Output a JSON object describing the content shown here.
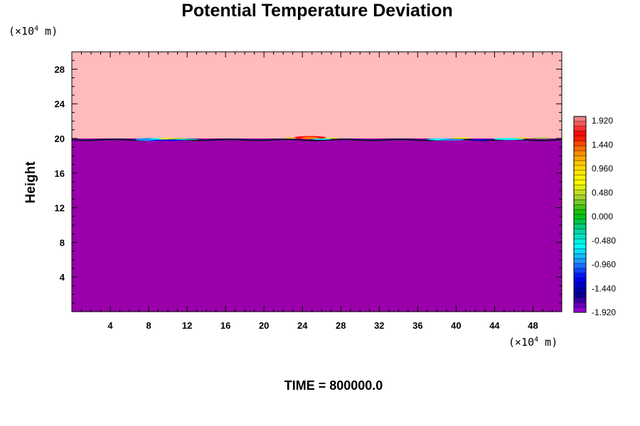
{
  "chart_data": {
    "type": "heatmap",
    "title": "Potential Temperature Deviation",
    "ylabel": "Height",
    "xlabel": "",
    "x_unit": {
      "prefix": "(×10",
      "exponent": "4",
      "suffix": " m)"
    },
    "y_unit": {
      "prefix": "(×10",
      "exponent": "4",
      "suffix": " m)"
    },
    "xlim": [
      0,
      51
    ],
    "ylim": [
      0,
      30
    ],
    "x_ticks": [
      4,
      8,
      12,
      16,
      20,
      24,
      28,
      32,
      36,
      40,
      44,
      48
    ],
    "y_ticks": [
      4,
      8,
      12,
      16,
      20,
      24,
      28
    ],
    "interface_height": 20,
    "regions": [
      {
        "name": "upper layer",
        "y_range": [
          20,
          30
        ],
        "value": 1.92
      },
      {
        "name": "lower layer",
        "y_range": [
          0,
          20
        ],
        "value": -1.92
      }
    ],
    "colorbar": {
      "min": -1.92,
      "max": 1.92,
      "labels": [
        "1.920",
        "1.440",
        "0.960",
        "0.480",
        "0.000",
        "-0.480",
        "-0.960",
        "-1.440",
        "-1.920"
      ],
      "colors": [
        "#f08080",
        "#ff0000",
        "#ff7f00",
        "#ffd700",
        "#ffff00",
        "#9acd32",
        "#00c000",
        "#00d0a0",
        "#00ffff",
        "#1e90ff",
        "#0000ff",
        "#00008b",
        "#9400d3"
      ]
    },
    "colors": {
      "upper": "#ffbbbb",
      "lower": "#9900aa"
    }
  },
  "footer": {
    "time_label": "TIME = 800000.0"
  }
}
